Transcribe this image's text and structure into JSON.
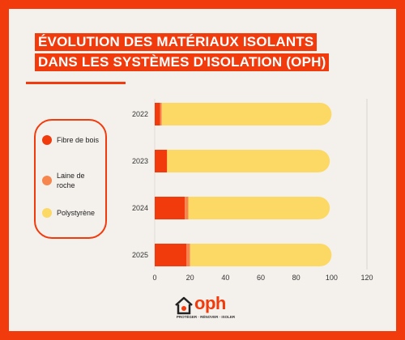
{
  "title": {
    "line1": "ÉVOLUTION DES MATÉRIAUX ISOLANTS",
    "line2": "DANS LES SYSTÈMES D'ISOLATION (OPH)"
  },
  "colors": {
    "accent": "#f23b0d",
    "background": "#f4f1ec",
    "fibre": "#f23b0d",
    "laine": "#f6864e",
    "polystyrene": "#fcd865"
  },
  "chart_data": {
    "type": "bar",
    "orientation": "horizontal",
    "stacked": true,
    "categories": [
      "2022",
      "2023",
      "2024",
      "2025"
    ],
    "series": [
      {
        "name": "Fibre de bois",
        "values": [
          3,
          7,
          17,
          18
        ],
        "color": "#f23b0d"
      },
      {
        "name": "Laine de roche",
        "values": [
          1,
          0,
          2,
          2
        ],
        "color": "#f6864e"
      },
      {
        "name": "Polystyrène",
        "values": [
          96,
          92,
          80,
          80
        ],
        "color": "#fcd865"
      }
    ],
    "xlim": [
      0,
      120
    ],
    "x_ticks": [
      "0",
      "20",
      "40",
      "60",
      "80",
      "100",
      "120"
    ],
    "title": "",
    "xlabel": "",
    "ylabel": "",
    "grid": "vertical line at 120",
    "legend_position": "left"
  },
  "legend": {
    "items": [
      {
        "label": "Fibre de bois",
        "icon": "circle"
      },
      {
        "label": "Laine de roche",
        "icon": "circle"
      },
      {
        "label": "Polystyrène",
        "icon": "circle"
      }
    ]
  },
  "logo": {
    "name": "oph",
    "tagline": "PROTÉGER · RÉNOVER · ISOLER"
  }
}
